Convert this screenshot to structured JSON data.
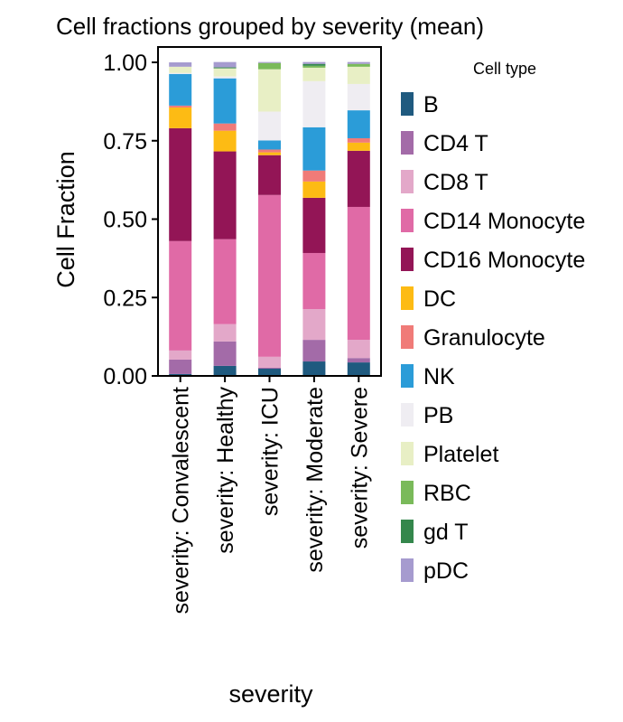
{
  "chart_data": {
    "type": "bar",
    "stacked": true,
    "title": "Cell fractions grouped by severity (mean)",
    "xlabel": "severity",
    "ylabel": "Cell Fraction",
    "ylim": [
      0,
      1.05
    ],
    "yticks": [
      0.0,
      0.25,
      0.5,
      0.75,
      1.0
    ],
    "ytick_labels": [
      "0.00",
      "0.25",
      "0.50",
      "0.75",
      "1.00"
    ],
    "grid": false,
    "legend_title": "Cell type",
    "legend_position": "right-outside",
    "categories": [
      "severity: Convalescent",
      "severity: Healthy",
      "severity: ICU",
      "severity: Moderate",
      "severity: Severe"
    ],
    "series": [
      {
        "name": "B",
        "color": "#1f5a7f",
        "values": [
          0.006,
          0.032,
          0.023,
          0.046,
          0.043
        ]
      },
      {
        "name": "CD4 T",
        "color": "#a36ba8",
        "values": [
          0.046,
          0.078,
          0.003,
          0.069,
          0.014
        ]
      },
      {
        "name": "CD8 T",
        "color": "#e3a8c9",
        "values": [
          0.029,
          0.055,
          0.035,
          0.098,
          0.058
        ]
      },
      {
        "name": "CD14 Monocyte",
        "color": "#e06aa6",
        "values": [
          0.349,
          0.271,
          0.516,
          0.179,
          0.424
        ]
      },
      {
        "name": "CD16 Monocyte",
        "color": "#931556",
        "values": [
          0.36,
          0.28,
          0.127,
          0.176,
          0.179
        ]
      },
      {
        "name": "DC",
        "color": "#fdbb14",
        "values": [
          0.066,
          0.066,
          0.009,
          0.052,
          0.026
        ]
      },
      {
        "name": "Granulocyte",
        "color": "#f07b78",
        "values": [
          0.006,
          0.023,
          0.009,
          0.035,
          0.014
        ]
      },
      {
        "name": "NK",
        "color": "#2b9cd8",
        "values": [
          0.101,
          0.144,
          0.029,
          0.138,
          0.089
        ]
      },
      {
        "name": "PB",
        "color": "#efedf2",
        "values": [
          0.003,
          0.006,
          0.092,
          0.147,
          0.084
        ]
      },
      {
        "name": "Platelet",
        "color": "#e8efc5",
        "values": [
          0.02,
          0.026,
          0.135,
          0.043,
          0.055
        ]
      },
      {
        "name": "RBC",
        "color": "#7aba5a",
        "values": [
          0.0,
          0.0,
          0.02,
          0.006,
          0.009
        ]
      },
      {
        "name": "gd T",
        "color": "#34874c",
        "values": [
          0.0,
          0.003,
          0.0,
          0.006,
          0.0
        ]
      },
      {
        "name": "pDC",
        "color": "#a69bcf",
        "values": [
          0.014,
          0.017,
          0.003,
          0.006,
          0.006
        ]
      }
    ]
  }
}
